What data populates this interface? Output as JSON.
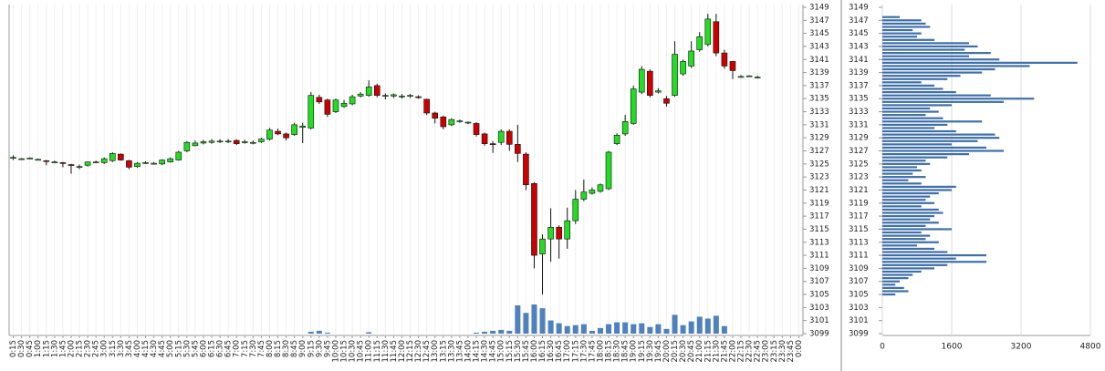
{
  "chart_data": [
    {
      "type": "candlestick",
      "categories": [
        "0:15",
        "0:30",
        "0:45",
        "1:00",
        "1:15",
        "1:30",
        "1:45",
        "2:00",
        "2:15",
        "2:30",
        "2:45",
        "3:00",
        "3:15",
        "3:30",
        "3:45",
        "4:00",
        "4:15",
        "4:30",
        "4:45",
        "5:00",
        "5:15",
        "5:30",
        "5:45",
        "6:00",
        "6:15",
        "6:30",
        "6:45",
        "7:00",
        "7:15",
        "7:30",
        "7:45",
        "8:00",
        "8:15",
        "8:30",
        "8:45",
        "9:00",
        "9:15",
        "9:30",
        "9:45",
        "10:00",
        "10:15",
        "10:30",
        "10:45",
        "11:00",
        "11:15",
        "11:30",
        "11:45",
        "12:00",
        "12:15",
        "12:30",
        "12:45",
        "13:00",
        "13:15",
        "13:30",
        "13:45",
        "14:00",
        "14:15",
        "14:30",
        "14:45",
        "15:00",
        "15:15",
        "15:30",
        "15:45",
        "16:00",
        "16:15",
        "16:30",
        "16:45",
        "17:00",
        "17:15",
        "17:30",
        "17:45",
        "18:00",
        "18:15",
        "18:30",
        "18:45",
        "19:00",
        "19:15",
        "19:30",
        "19:45",
        "20:00",
        "20:15",
        "20:30",
        "20:45",
        "21:00",
        "21:15",
        "21:30",
        "21:45",
        "22:00",
        "22:15",
        "22:30",
        "22:45",
        "23:00",
        "23:15",
        "23:30",
        "23:45",
        "0:00"
      ],
      "open": [
        3126,
        3125.8,
        3125.9,
        3125.7,
        3125.5,
        3125.3,
        3125.2,
        3124.9,
        3124.6,
        3124.8,
        3125.3,
        3125.2,
        3125.5,
        3126.5,
        3125.5,
        3124.6,
        3125.2,
        3125.1,
        3125,
        3125.3,
        3125.6,
        3127,
        3127.8,
        3128.2,
        3128.3,
        3128.4,
        3128.4,
        3128.6,
        3128.3,
        3128.3,
        3128.4,
        3128.8,
        3130,
        3129.6,
        3129.5,
        3130.6,
        3130.5,
        3135.2,
        3134.8,
        3133,
        3133.8,
        3134.2,
        3135.4,
        3135.5,
        3137,
        3135.4,
        3135.4,
        3135.3,
        3135.4,
        3135.3,
        3134.9,
        3132.8,
        3132.2,
        3131,
        3131.6,
        3131.3,
        3131.2,
        3129.6,
        3128.1,
        3128.3,
        3130,
        3128,
        3126.5,
        3122,
        3111.2,
        3113.5,
        3115.3,
        3113.5,
        3116.3,
        3119.6,
        3120.5,
        3120.8,
        3121.2,
        3128.1,
        3129.6,
        3131.2,
        3136,
        3139.2,
        3136,
        3135,
        3135.5,
        3138.8,
        3140,
        3142.5,
        3143.3,
        3146.8,
        3142,
        3140.7,
        3138.4,
        3138.5,
        3138.3,
        null,
        null,
        null,
        null,
        null
      ],
      "high": [
        3126.3,
        3125.9,
        3126,
        3125.8,
        3125.6,
        3125.5,
        3125.3,
        3125,
        3124.9,
        3125.4,
        3125.5,
        3126,
        3126.8,
        3126.6,
        3125.6,
        3125.3,
        3125.4,
        3125.3,
        3125.7,
        3126,
        3127,
        3128.5,
        3128.6,
        3128.7,
        3128.8,
        3128.8,
        3128.8,
        3128.8,
        3128.7,
        3128.6,
        3129,
        3130.5,
        3130.4,
        3129.8,
        3131.3,
        3131.3,
        3136,
        3135.6,
        3135,
        3135,
        3134.8,
        3135.6,
        3136,
        3137.8,
        3137.3,
        3135.8,
        3135.8,
        3135.7,
        3135.7,
        3135.5,
        3135,
        3133,
        3132.4,
        3132,
        3131.8,
        3131.5,
        3131.4,
        3129.8,
        3128.5,
        3130.3,
        3130.3,
        3131,
        3126.8,
        3122.2,
        3114.2,
        3118.2,
        3115.6,
        3118.3,
        3121,
        3122.6,
        3121.4,
        3122,
        3127,
        3129.7,
        3132.5,
        3137,
        3140,
        3139.5,
        3136.6,
        3135.4,
        3143.8,
        3141,
        3143.8,
        3145.2,
        3148,
        3148,
        3142.5,
        3140.8,
        3138.6,
        3138.6,
        3138.5,
        null,
        null,
        null,
        null,
        null
      ],
      "low": [
        3125.6,
        3125.7,
        3125.8,
        3125.6,
        3124.8,
        3125.1,
        3124.5,
        3123.5,
        3124.2,
        3124.6,
        3125.1,
        3125,
        3125.3,
        3125.5,
        3124.2,
        3124.4,
        3125,
        3124.9,
        3124.8,
        3125.2,
        3125.5,
        3126.8,
        3127.7,
        3128,
        3128.1,
        3128.2,
        3128.2,
        3127.9,
        3128.1,
        3128,
        3128.2,
        3128.6,
        3129.4,
        3128.6,
        3129.3,
        3128.2,
        3130.3,
        3134.2,
        3132.2,
        3132.8,
        3133.6,
        3134,
        3135.2,
        3135.3,
        3135.2,
        3134.9,
        3135.1,
        3135,
        3135.1,
        3135,
        3132.5,
        3131.2,
        3130.3,
        3130.8,
        3131.3,
        3131.1,
        3129.2,
        3127.8,
        3126.7,
        3127.9,
        3127,
        3125.3,
        3121,
        3109,
        3105,
        3110,
        3110.5,
        3112,
        3115.8,
        3119.3,
        3120.3,
        3120.6,
        3121,
        3127.9,
        3129.3,
        3131,
        3135.7,
        3135.2,
        3135.8,
        3133.8,
        3135.3,
        3138.5,
        3139.7,
        3142.2,
        3143,
        3141.5,
        3139.6,
        3138,
        3138.2,
        3138.3,
        3138.1,
        null,
        null,
        null,
        null,
        null
      ],
      "close": [
        3126,
        3125.8,
        3125.9,
        3125.7,
        3125.4,
        3125.3,
        3125.1,
        3124.8,
        3124.6,
        3125.3,
        3125.3,
        3125.8,
        3126.6,
        3125.6,
        3124.5,
        3125.1,
        3125.2,
        3125.1,
        3125.6,
        3125.8,
        3126.8,
        3128.3,
        3128.2,
        3128.4,
        3128.5,
        3128.5,
        3128.5,
        3128.1,
        3128.4,
        3128.3,
        3128.8,
        3130.2,
        3129.6,
        3129,
        3131,
        3130.8,
        3135.5,
        3134.5,
        3132.6,
        3134.8,
        3134.3,
        3135.3,
        3135.7,
        3136.8,
        3135.5,
        3135.5,
        3135.6,
        3135.4,
        3135.5,
        3135.2,
        3132.8,
        3132,
        3130.7,
        3131.8,
        3131.6,
        3131.4,
        3129.5,
        3128.1,
        3128,
        3130,
        3128,
        3126.6,
        3121.8,
        3111,
        3113.5,
        3115.3,
        3113.5,
        3116.3,
        3119.6,
        3120.7,
        3121,
        3121.8,
        3126.8,
        3129.4,
        3131.5,
        3136.5,
        3139.5,
        3135.5,
        3136.2,
        3134.3,
        3141.8,
        3140.7,
        3142.3,
        3144.5,
        3147.2,
        3142,
        3140,
        3139.3,
        3138.4,
        3138.5,
        3138.3,
        null,
        null,
        null,
        null,
        null
      ],
      "volume": [
        0,
        0,
        0,
        0,
        0,
        0,
        0,
        0,
        0,
        0,
        0,
        0,
        0,
        0,
        0,
        0,
        0,
        0,
        0,
        0,
        0,
        0,
        0,
        0,
        0,
        0,
        0,
        0,
        0,
        0,
        0,
        0,
        0,
        0,
        0,
        0,
        20,
        30,
        10,
        0,
        0,
        0,
        0,
        15,
        0,
        0,
        0,
        0,
        0,
        0,
        0,
        0,
        0,
        0,
        0,
        0,
        10,
        20,
        30,
        40,
        30,
        300,
        220,
        310,
        270,
        140,
        110,
        80,
        90,
        100,
        30,
        60,
        100,
        120,
        120,
        100,
        110,
        70,
        100,
        50,
        200,
        90,
        130,
        180,
        160,
        190,
        80,
        0,
        0,
        0,
        0,
        null,
        null,
        null,
        null,
        null
      ],
      "up_color": "#22dd22",
      "down_color": "#cc0000",
      "volume_color": "#4f81bd",
      "ylim": [
        3099,
        3149
      ],
      "yticks": [
        3099,
        3101,
        3103,
        3105,
        3107,
        3109,
        3111,
        3113,
        3115,
        3117,
        3119,
        3121,
        3123,
        3125,
        3127,
        3129,
        3131,
        3133,
        3135,
        3137,
        3139,
        3141,
        3143,
        3145,
        3147,
        3149
      ],
      "grid": true
    },
    {
      "type": "volume_profile",
      "color": "#3e6fa8",
      "prices": [
        3147.5,
        3147,
        3146.5,
        3146,
        3145.5,
        3145,
        3144.5,
        3144,
        3143.5,
        3143,
        3142.5,
        3142,
        3141.5,
        3141,
        3140.5,
        3140,
        3139.5,
        3139,
        3138.5,
        3138,
        3137.5,
        3137,
        3136.5,
        3136,
        3135.5,
        3135,
        3134.5,
        3134,
        3133.5,
        3133,
        3132.5,
        3132,
        3131.5,
        3131,
        3130.5,
        3130,
        3129.5,
        3129,
        3128.5,
        3128,
        3127.5,
        3127,
        3126.5,
        3126,
        3125.5,
        3125,
        3124.5,
        3124,
        3123.5,
        3123,
        3122.5,
        3122,
        3121.5,
        3121,
        3120.5,
        3120,
        3119.5,
        3119,
        3118.5,
        3118,
        3117.5,
        3117,
        3116.5,
        3116,
        3115.5,
        3115,
        3114.5,
        3114,
        3113.5,
        3113,
        3112.5,
        3112,
        3111.5,
        3111,
        3110.5,
        3110,
        3109.5,
        3109,
        3108.5,
        3108,
        3107.5,
        3107,
        3106.5,
        3106,
        3105.5,
        3105
      ],
      "values": [
        400,
        900,
        1000,
        1100,
        700,
        900,
        800,
        1200,
        2000,
        2200,
        1900,
        2500,
        2000,
        2700,
        4500,
        3400,
        2600,
        2300,
        1800,
        1500,
        900,
        1200,
        1400,
        1700,
        2500,
        3500,
        2800,
        1600,
        1100,
        1300,
        1000,
        1400,
        2300,
        1500,
        1200,
        1700,
        2600,
        2700,
        2200,
        1600,
        2400,
        2800,
        2000,
        1500,
        1000,
        1100,
        800,
        900,
        700,
        1000,
        600,
        900,
        1700,
        1600,
        1300,
        1100,
        1000,
        1200,
        900,
        1300,
        1400,
        1200,
        1100,
        1300,
        1000,
        1600,
        900,
        1100,
        1000,
        1300,
        800,
        1200,
        1500,
        2400,
        1700,
        2400,
        1500,
        1200,
        900,
        700,
        600,
        400,
        300,
        500,
        600,
        300
      ],
      "xlim": [
        0,
        4800
      ],
      "xticks": [
        0,
        1600,
        3200,
        4800
      ],
      "ylim": [
        3099,
        3149
      ],
      "yticks": [
        3099,
        3101,
        3103,
        3105,
        3107,
        3109,
        3111,
        3113,
        3115,
        3117,
        3119,
        3121,
        3123,
        3125,
        3127,
        3129,
        3131,
        3133,
        3135,
        3137,
        3139,
        3141,
        3143,
        3145,
        3147,
        3149
      ],
      "grid": true
    }
  ]
}
